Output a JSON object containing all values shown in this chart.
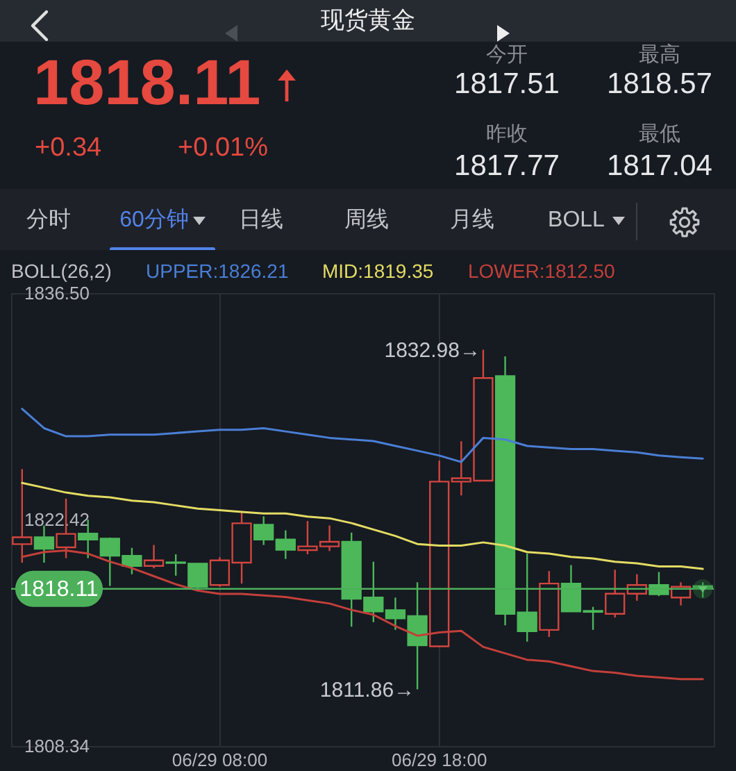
{
  "chart_data": [
    {
      "type": "other",
      "title": "现货黄金",
      "annotations": [
        "1818.11",
        "+0.34",
        "+0.01%",
        "今开",
        "1817.51",
        "最高",
        "1818.57",
        "昨收",
        "1817.77",
        "最低",
        "1817.04",
        "分时",
        "60分钟",
        "日线",
        "周线",
        "月线",
        "BOLL"
      ]
    },
    {
      "type": "candlestick",
      "legend_title": "BOLL(26,2)",
      "legend": "top left",
      "grid": "x",
      "categories": [
        null,
        null,
        null,
        null,
        null,
        null,
        null,
        null,
        null,
        "06/29 08:00",
        null,
        null,
        null,
        null,
        null,
        null,
        null,
        null,
        null,
        "06/29 18:00",
        null,
        null,
        null,
        null,
        null,
        null,
        null,
        null,
        null,
        null,
        null,
        null
      ],
      "ohlc": [
        [
          1820.89,
          1825.56,
          1819.74,
          1821.32
        ],
        [
          1821.32,
          1822.05,
          1819.74,
          1820.6
        ],
        [
          1820.69,
          1823.72,
          1820.02,
          1821.53
        ],
        [
          1821.55,
          1822.42,
          1820.02,
          1821.18
        ],
        [
          1821.23,
          1821.3,
          1818.29,
          1820.17
        ],
        [
          1820.17,
          1820.66,
          1819.02,
          1819.54
        ],
        [
          1819.54,
          1820.84,
          1819.39,
          1819.88
        ],
        [
          1819.76,
          1820.26,
          1818.93,
          1819.72
        ],
        [
          1819.68,
          1819.7,
          1818.15,
          1818.24
        ],
        [
          1818.35,
          1820.08,
          1818.24,
          1819.88
        ],
        [
          1819.74,
          1822.85,
          1818.44,
          1822.19
        ],
        [
          1822.1,
          1822.62,
          1820.84,
          1821.18
        ],
        [
          1821.18,
          1821.75,
          1819.97,
          1820.54
        ],
        [
          1820.52,
          1822.33,
          1820.26,
          1820.75
        ],
        [
          1820.75,
          1822.05,
          1820.46,
          1821.04
        ],
        [
          1821.04,
          1821.61,
          1815.76,
          1817.49
        ],
        [
          1817.57,
          1819.8,
          1816.04,
          1816.71
        ],
        [
          1816.79,
          1817.57,
          1815.56,
          1816.27
        ],
        [
          1816.42,
          1818.52,
          1811.86,
          1814.6
        ],
        [
          1814.54,
          1826.08,
          1814.5,
          1824.78
        ],
        [
          1824.78,
          1827.29,
          1823.92,
          1824.99
        ],
        [
          1824.84,
          1832.98,
          1824.8,
          1831.22
        ],
        [
          1831.34,
          1832.57,
          1815.84,
          1816.56
        ],
        [
          1816.65,
          1820.32,
          1814.83,
          1815.47
        ],
        [
          1815.56,
          1819.22,
          1815.12,
          1818.44
        ],
        [
          1818.44,
          1819.59,
          1816.68,
          1816.71
        ],
        [
          1816.74,
          1816.99,
          1815.56,
          1816.68
        ],
        [
          1816.56,
          1819.3,
          1816.33,
          1817.81
        ],
        [
          1817.81,
          1819.02,
          1817.37,
          1818.35
        ],
        [
          1818.35,
          1819.16,
          1817.66,
          1817.77
        ],
        [
          1817.57,
          1818.52,
          1817.08,
          1818.24
        ],
        [
          1818.29,
          1818.52,
          1817.57,
          1818.11
        ]
      ],
      "colors": [
        "#d2463f",
        "#4cb85a",
        "#d2463f",
        "#4cb85a",
        "#4cb85a",
        "#4cb85a",
        "#d2463f",
        "#4cb85a",
        "#4cb85a",
        "#d2463f",
        "#d2463f",
        "#4cb85a",
        "#4cb85a",
        "#d2463f",
        "#d2463f",
        "#4cb85a",
        "#4cb85a",
        "#4cb85a",
        "#4cb85a",
        "#d2463f",
        "#d2463f",
        "#d2463f",
        "#4cb85a",
        "#4cb85a",
        "#d2463f",
        "#4cb85a",
        "#4cb85a",
        "#d2463f",
        "#d2463f",
        "#4cb85a",
        "#d2463f",
        "#4cb85a"
      ],
      "series": [
        {
          "name": "UPPER:1826.21",
          "type": "line",
          "color": "#4a7fd6",
          "values": [
            1829.3,
            1828.1,
            1827.6,
            1827.6,
            1827.7,
            1827.7,
            1827.7,
            1827.8,
            1827.9,
            1828.0,
            1828.0,
            1828.1,
            1827.9,
            1827.7,
            1827.5,
            1827.4,
            1827.3,
            1827.0,
            1826.7,
            1826.4,
            1826.0,
            1827.5,
            1827.4,
            1827.0,
            1826.9,
            1826.8,
            1826.8,
            1826.7,
            1826.6,
            1826.4,
            1826.3,
            1826.21
          ]
        },
        {
          "name": "MID:1819.35",
          "type": "line",
          "color": "#e3dc63",
          "values": [
            1824.7,
            1824.4,
            1824.1,
            1823.9,
            1823.8,
            1823.6,
            1823.5,
            1823.3,
            1823.1,
            1823.0,
            1822.9,
            1822.8,
            1822.8,
            1822.6,
            1822.5,
            1822.2,
            1821.8,
            1821.4,
            1820.9,
            1820.8,
            1820.8,
            1821.0,
            1820.8,
            1820.4,
            1820.3,
            1820.1,
            1820.0,
            1819.8,
            1819.7,
            1819.5,
            1819.5,
            1819.35
          ]
        },
        {
          "name": "LOWER:1812.50",
          "type": "line",
          "color": "#c2403a",
          "values": [
            1820.1,
            1820.4,
            1820.5,
            1820.3,
            1819.8,
            1819.4,
            1818.9,
            1818.4,
            1818.0,
            1817.8,
            1817.8,
            1817.7,
            1817.6,
            1817.4,
            1817.2,
            1816.8,
            1816.5,
            1815.8,
            1815.2,
            1815.4,
            1815.5,
            1814.5,
            1814.1,
            1813.7,
            1813.6,
            1813.3,
            1813.0,
            1812.9,
            1812.7,
            1812.6,
            1812.5,
            1812.5
          ]
        }
      ],
      "ylim": [
        1808.34,
        1836.5
      ],
      "yticks": [
        1808.34,
        1822.42,
        {
          "value": 1836.5,
          "label": "1836.50"
        }
      ],
      "ref_lines": [
        {
          "axis": "y",
          "value": 1818.11,
          "label": "1818.11",
          "color": "#4cb05a"
        }
      ],
      "annotations": [
        "1832.98→",
        "1811.86→"
      ]
    }
  ]
}
